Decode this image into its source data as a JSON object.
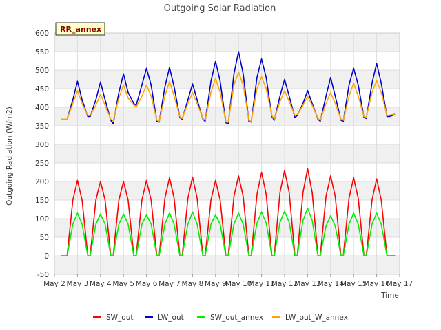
{
  "chart_data": {
    "type": "line",
    "title": "Outgoing Solar Radiation",
    "xlabel": "Time",
    "ylabel": "Outgoing Radiation (W/m2)",
    "badge": "RR_annex",
    "ylim": [
      -50,
      600
    ],
    "yticks": [
      -50,
      0,
      50,
      100,
      150,
      200,
      250,
      300,
      350,
      400,
      450,
      500,
      550,
      600
    ],
    "xlim": [
      2,
      17
    ],
    "xticks": [
      {
        "v": 2,
        "label": "May 2"
      },
      {
        "v": 3,
        "label": "May 3"
      },
      {
        "v": 4,
        "label": "May 4"
      },
      {
        "v": 5,
        "label": "May 5"
      },
      {
        "v": 6,
        "label": "May 6"
      },
      {
        "v": 7,
        "label": "May 7"
      },
      {
        "v": 8,
        "label": "May 8"
      },
      {
        "v": 9,
        "label": "May 9"
      },
      {
        "v": 10,
        "label": "May 10"
      },
      {
        "v": 11,
        "label": "May 11"
      },
      {
        "v": 12,
        "label": "May 12"
      },
      {
        "v": 13,
        "label": "May 13"
      },
      {
        "v": 14,
        "label": "May 14"
      },
      {
        "v": 15,
        "label": "May 15"
      },
      {
        "v": 16,
        "label": "May 16"
      },
      {
        "v": 17,
        "label": "May 17"
      }
    ],
    "grid": true,
    "legend_position": "bottom",
    "series": [
      {
        "name": "SW_out",
        "color": "#ff0000",
        "x": [
          2.3,
          2.55,
          2.8,
          3.0,
          3.2,
          3.45,
          3.55,
          3.8,
          4.0,
          4.2,
          4.45,
          4.55,
          4.8,
          5.0,
          5.2,
          5.45,
          5.55,
          5.8,
          6.0,
          6.2,
          6.45,
          6.55,
          6.8,
          7.0,
          7.2,
          7.45,
          7.55,
          7.8,
          8.0,
          8.2,
          8.45,
          8.55,
          8.8,
          9.0,
          9.2,
          9.45,
          9.55,
          9.8,
          10.0,
          10.2,
          10.45,
          10.55,
          10.8,
          11.0,
          11.2,
          11.45,
          11.55,
          11.8,
          12.0,
          12.2,
          12.45,
          12.55,
          12.8,
          13.0,
          13.2,
          13.45,
          13.55,
          13.8,
          14.0,
          14.2,
          14.45,
          14.55,
          14.8,
          15.0,
          15.2,
          15.45,
          15.55,
          15.8,
          16.0,
          16.2,
          16.45,
          16.55,
          16.8
        ],
        "y": [
          0,
          0,
          150,
          203,
          150,
          0,
          0,
          150,
          200,
          150,
          0,
          0,
          150,
          200,
          150,
          0,
          0,
          150,
          203,
          150,
          0,
          0,
          155,
          210,
          155,
          0,
          0,
          155,
          212,
          155,
          0,
          0,
          150,
          203,
          150,
          0,
          0,
          160,
          215,
          160,
          0,
          0,
          165,
          225,
          165,
          0,
          0,
          170,
          230,
          170,
          0,
          0,
          170,
          235,
          170,
          0,
          0,
          160,
          215,
          160,
          0,
          0,
          155,
          210,
          155,
          0,
          0,
          150,
          207,
          150,
          0,
          0,
          0
        ]
      },
      {
        "name": "LW_out",
        "color": "#0000cc",
        "x": [
          2.3,
          2.55,
          2.8,
          3.0,
          3.2,
          3.45,
          3.55,
          3.8,
          4.0,
          4.2,
          4.45,
          4.55,
          4.8,
          5.0,
          5.2,
          5.45,
          5.55,
          5.8,
          6.0,
          6.2,
          6.45,
          6.55,
          6.8,
          7.0,
          7.2,
          7.45,
          7.55,
          7.8,
          8.0,
          8.2,
          8.45,
          8.55,
          8.8,
          9.0,
          9.2,
          9.45,
          9.55,
          9.8,
          10.0,
          10.2,
          10.45,
          10.55,
          10.8,
          11.0,
          11.2,
          11.45,
          11.55,
          11.8,
          12.0,
          12.2,
          12.45,
          12.55,
          12.8,
          13.0,
          13.2,
          13.45,
          13.55,
          13.8,
          14.0,
          14.2,
          14.45,
          14.55,
          14.8,
          15.0,
          15.2,
          15.45,
          15.55,
          15.8,
          16.0,
          16.2,
          16.45,
          16.55,
          16.8
        ],
        "y": [
          368,
          368,
          420,
          470,
          420,
          375,
          375,
          420,
          468,
          420,
          365,
          355,
          440,
          490,
          440,
          410,
          405,
          460,
          505,
          460,
          362,
          360,
          455,
          507,
          455,
          372,
          368,
          420,
          463,
          420,
          368,
          362,
          470,
          524,
          470,
          358,
          355,
          490,
          550,
          490,
          362,
          360,
          480,
          530,
          480,
          375,
          365,
          430,
          475,
          430,
          372,
          378,
          410,
          445,
          410,
          368,
          362,
          430,
          480,
          430,
          365,
          362,
          460,
          505,
          460,
          372,
          370,
          465,
          518,
          465,
          375,
          375,
          380
        ]
      },
      {
        "name": "SW_out_annex",
        "color": "#00ee00",
        "x": [
          2.3,
          2.55,
          2.8,
          3.0,
          3.2,
          3.45,
          3.55,
          3.8,
          4.0,
          4.2,
          4.45,
          4.55,
          4.8,
          5.0,
          5.2,
          5.45,
          5.55,
          5.8,
          6.0,
          6.2,
          6.45,
          6.55,
          6.8,
          7.0,
          7.2,
          7.45,
          7.55,
          7.8,
          8.0,
          8.2,
          8.45,
          8.55,
          8.8,
          9.0,
          9.2,
          9.45,
          9.55,
          9.8,
          10.0,
          10.2,
          10.45,
          10.55,
          10.8,
          11.0,
          11.2,
          11.45,
          11.55,
          11.8,
          12.0,
          12.2,
          12.45,
          12.55,
          12.8,
          13.0,
          13.2,
          13.45,
          13.55,
          13.8,
          14.0,
          14.2,
          14.45,
          14.55,
          14.8,
          15.0,
          15.2,
          15.45,
          15.55,
          15.8,
          16.0,
          16.2,
          16.45,
          16.55,
          16.8
        ],
        "y": [
          0,
          0,
          85,
          115,
          85,
          0,
          0,
          85,
          112,
          85,
          0,
          0,
          85,
          112,
          85,
          0,
          0,
          85,
          110,
          85,
          0,
          0,
          85,
          115,
          85,
          0,
          0,
          85,
          118,
          85,
          0,
          0,
          85,
          110,
          85,
          0,
          0,
          85,
          115,
          85,
          0,
          0,
          88,
          118,
          88,
          0,
          0,
          90,
          120,
          90,
          0,
          0,
          95,
          128,
          95,
          0,
          0,
          80,
          108,
          80,
          0,
          0,
          85,
          115,
          85,
          0,
          0,
          85,
          115,
          85,
          0,
          0,
          0
        ]
      },
      {
        "name": "LW_out_W_annex",
        "color": "#ffa500",
        "x": [
          2.3,
          2.55,
          2.8,
          3.0,
          3.2,
          3.45,
          3.55,
          3.8,
          4.0,
          4.2,
          4.45,
          4.55,
          4.8,
          5.0,
          5.2,
          5.45,
          5.55,
          5.8,
          6.0,
          6.2,
          6.45,
          6.55,
          6.8,
          7.0,
          7.2,
          7.45,
          7.55,
          7.8,
          8.0,
          8.2,
          8.45,
          8.55,
          8.8,
          9.0,
          9.2,
          9.45,
          9.55,
          9.8,
          10.0,
          10.2,
          10.45,
          10.55,
          10.8,
          11.0,
          11.2,
          11.45,
          11.55,
          11.8,
          12.0,
          12.2,
          12.45,
          12.55,
          12.8,
          13.0,
          13.2,
          13.45,
          13.55,
          13.8,
          14.0,
          14.2,
          14.45,
          14.55,
          14.8,
          15.0,
          15.2,
          15.45,
          15.55,
          15.8,
          16.0,
          16.2,
          16.45,
          16.55,
          16.8
        ],
        "y": [
          368,
          368,
          410,
          445,
          410,
          378,
          378,
          405,
          435,
          405,
          368,
          362,
          425,
          460,
          425,
          405,
          400,
          430,
          460,
          430,
          365,
          362,
          430,
          470,
          430,
          375,
          370,
          410,
          440,
          410,
          370,
          365,
          440,
          478,
          440,
          360,
          360,
          460,
          495,
          460,
          365,
          362,
          450,
          482,
          450,
          378,
          368,
          415,
          445,
          415,
          378,
          380,
          405,
          430,
          405,
          370,
          365,
          410,
          440,
          410,
          368,
          365,
          430,
          465,
          430,
          375,
          373,
          440,
          472,
          440,
          378,
          378,
          382
        ]
      }
    ]
  }
}
